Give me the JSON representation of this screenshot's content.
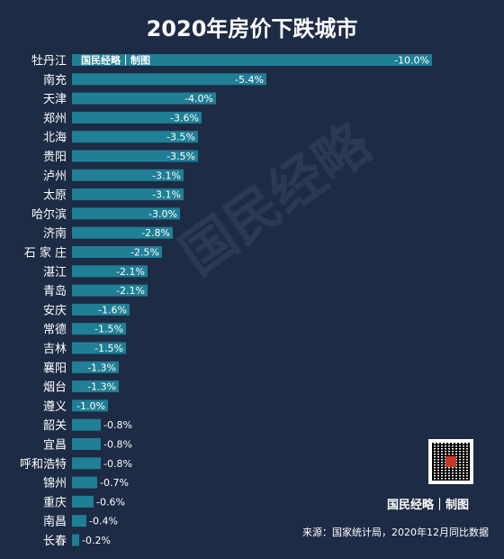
{
  "chart_data": {
    "type": "bar",
    "orientation": "horizontal",
    "title": "2020年房价下跌城市",
    "categories": [
      "牡丹江",
      "南充",
      "天津",
      "郑州",
      "北海",
      "贵阳",
      "泸州",
      "太原",
      "哈尔滨",
      "济南",
      "石 家 庄",
      "湛江",
      "青岛",
      "安庆",
      "常德",
      "吉林",
      "襄阳",
      "烟台",
      "遵义",
      "韶关",
      "宜昌",
      "呼和浩特",
      "锦州",
      "重庆",
      "南昌",
      "长春"
    ],
    "values": [
      -10.0,
      -5.4,
      -4.0,
      -3.6,
      -3.5,
      -3.5,
      -3.1,
      -3.1,
      -3.0,
      -2.8,
      -2.5,
      -2.1,
      -2.1,
      -1.6,
      -1.5,
      -1.5,
      -1.3,
      -1.3,
      -1.0,
      -0.8,
      -0.8,
      -0.8,
      -0.7,
      -0.6,
      -0.4,
      -0.2
    ],
    "value_labels": [
      "-10.0%",
      "-5.4%",
      "-4.0%",
      "-3.6%",
      "-3.5%",
      "-3.5%",
      "-3.1%",
      "-3.1%",
      "-3.0%",
      "-2.8%",
      "-2.5%",
      "-2.1%",
      "-2.1%",
      "-1.6%",
      "-1.5%",
      "-1.5%",
      "-1.3%",
      "-1.3%",
      "-1.0%",
      "-0.8%",
      "-0.8%",
      "-0.8%",
      "-0.7%",
      "-0.6%",
      "-0.4%",
      "-0.2%"
    ],
    "unit": "%",
    "bar_color": "#1f7f95",
    "background_color": "#1d2b45"
  },
  "watermark": "国民经略",
  "brand_in_bar": "国民经略｜制图",
  "brand_bottom": "国民经略｜制图",
  "source": "来源：国家统计局，2020年12月同比数据",
  "qr_icon": "qr-code-icon"
}
